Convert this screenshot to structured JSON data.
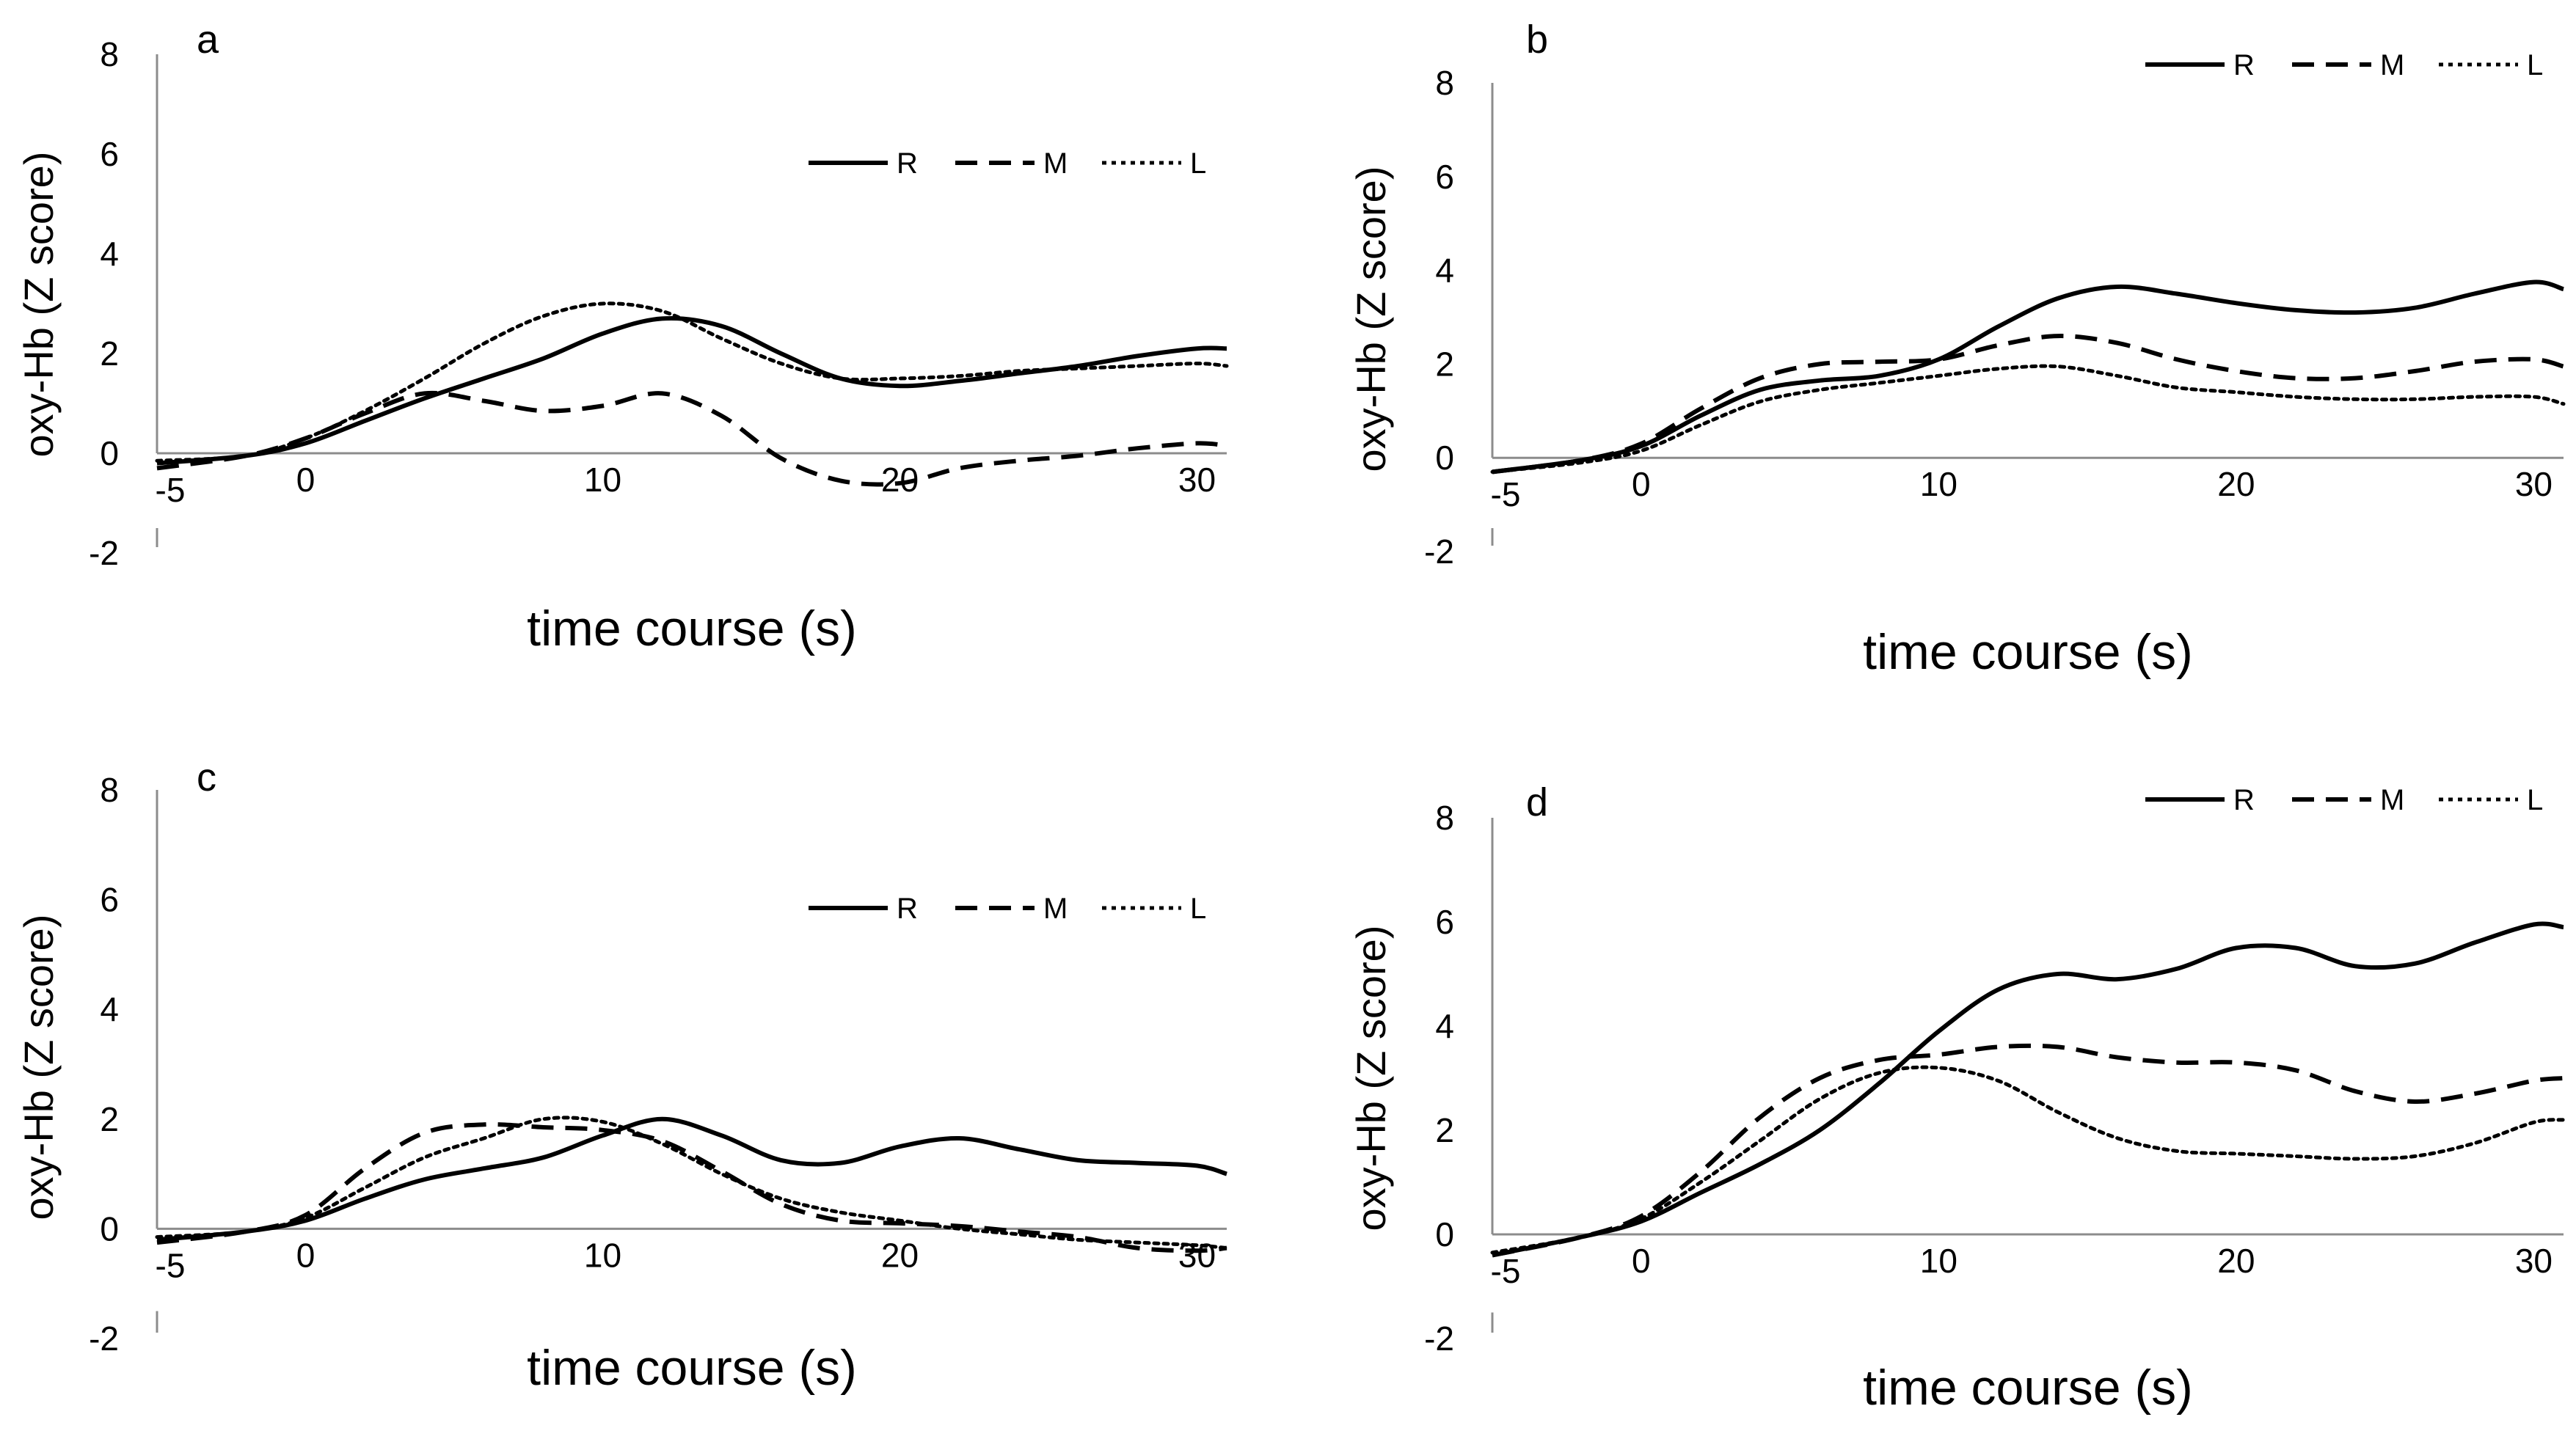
{
  "figure": {
    "background_color": "#ffffff",
    "ink_color": "#000000"
  },
  "chart_data": [
    {
      "type": "line",
      "panel_label": "a",
      "title": "",
      "xlabel": "time course (s)",
      "ylabel": "oxy-Hb (Z score)",
      "xlim": [
        -5,
        31
      ],
      "ylim": [
        -2,
        8
      ],
      "xticks": [
        -5,
        0,
        10,
        20,
        30
      ],
      "yticks": [
        -2,
        0,
        2,
        4,
        6,
        8
      ],
      "legend": "top-right",
      "series": [
        {
          "name": "R",
          "style": "solid",
          "x": [
            -5,
            -2,
            0,
            2,
            4,
            6,
            8,
            10,
            12,
            14,
            16,
            18,
            20,
            22,
            24,
            26,
            28,
            30,
            31
          ],
          "values": [
            -0.2,
            -0.05,
            0.2,
            0.65,
            1.1,
            1.5,
            1.9,
            2.4,
            2.7,
            2.55,
            2.0,
            1.5,
            1.35,
            1.45,
            1.6,
            1.75,
            1.95,
            2.1,
            2.1
          ]
        },
        {
          "name": "M",
          "style": "dashed",
          "x": [
            -5,
            -2,
            0,
            2,
            4,
            6,
            8,
            10,
            12,
            14,
            16,
            18,
            20,
            22,
            24,
            26,
            28,
            30,
            31
          ],
          "values": [
            -0.3,
            -0.05,
            0.3,
            0.8,
            1.2,
            1.05,
            0.85,
            0.95,
            1.2,
            0.75,
            -0.1,
            -0.55,
            -0.6,
            -0.3,
            -0.15,
            -0.05,
            0.1,
            0.2,
            0.15
          ]
        },
        {
          "name": "L",
          "style": "dotted",
          "x": [
            -5,
            -2,
            0,
            2,
            4,
            6,
            8,
            10,
            12,
            14,
            16,
            18,
            20,
            22,
            24,
            26,
            28,
            30,
            31
          ],
          "values": [
            -0.15,
            -0.05,
            0.3,
            0.85,
            1.5,
            2.2,
            2.75,
            3.0,
            2.85,
            2.3,
            1.8,
            1.5,
            1.5,
            1.55,
            1.65,
            1.7,
            1.75,
            1.8,
            1.75
          ]
        }
      ]
    },
    {
      "type": "line",
      "panel_label": "b",
      "title": "",
      "xlabel": "time course (s)",
      "ylabel": "oxy-Hb (Z score)",
      "xlim": [
        -5,
        31
      ],
      "ylim": [
        -2,
        8
      ],
      "xticks": [
        -5,
        0,
        10,
        20,
        30
      ],
      "yticks": [
        -2,
        0,
        2,
        4,
        6,
        8
      ],
      "legend": "top-right",
      "series": [
        {
          "name": "R",
          "style": "solid",
          "x": [
            -5,
            -2,
            0,
            2,
            4,
            6,
            8,
            10,
            12,
            14,
            16,
            18,
            20,
            22,
            24,
            26,
            28,
            30,
            31
          ],
          "values": [
            -0.3,
            -0.05,
            0.25,
            0.9,
            1.45,
            1.65,
            1.75,
            2.1,
            2.8,
            3.4,
            3.65,
            3.5,
            3.3,
            3.15,
            3.1,
            3.2,
            3.5,
            3.75,
            3.6
          ]
        },
        {
          "name": "M",
          "style": "dashed",
          "x": [
            -5,
            -2,
            0,
            2,
            4,
            6,
            8,
            10,
            12,
            14,
            16,
            18,
            20,
            22,
            24,
            26,
            28,
            30,
            31
          ],
          "values": [
            -0.3,
            -0.05,
            0.3,
            1.05,
            1.7,
            2.0,
            2.05,
            2.1,
            2.4,
            2.6,
            2.45,
            2.1,
            1.85,
            1.7,
            1.7,
            1.85,
            2.05,
            2.1,
            1.95
          ]
        },
        {
          "name": "L",
          "style": "dotted",
          "x": [
            -5,
            -2,
            0,
            2,
            4,
            6,
            8,
            10,
            12,
            14,
            16,
            18,
            20,
            22,
            24,
            26,
            28,
            30,
            31
          ],
          "values": [
            -0.3,
            -0.1,
            0.15,
            0.7,
            1.2,
            1.45,
            1.6,
            1.75,
            1.9,
            1.95,
            1.75,
            1.5,
            1.4,
            1.3,
            1.25,
            1.25,
            1.3,
            1.3,
            1.15
          ]
        }
      ]
    },
    {
      "type": "line",
      "panel_label": "c",
      "title": "",
      "xlabel": "time course (s)",
      "ylabel": "oxy-Hb (Z score)",
      "xlim": [
        -5,
        31
      ],
      "ylim": [
        -2,
        8
      ],
      "xticks": [
        -5,
        0,
        10,
        20,
        30
      ],
      "yticks": [
        -2,
        0,
        2,
        4,
        6,
        8
      ],
      "legend": "top-right",
      "series": [
        {
          "name": "R",
          "style": "solid",
          "x": [
            -5,
            -2,
            0,
            2,
            4,
            6,
            8,
            10,
            12,
            14,
            16,
            18,
            20,
            22,
            24,
            26,
            28,
            30,
            31
          ],
          "values": [
            -0.2,
            -0.05,
            0.15,
            0.55,
            0.9,
            1.1,
            1.3,
            1.7,
            2.0,
            1.7,
            1.25,
            1.2,
            1.5,
            1.65,
            1.45,
            1.25,
            1.2,
            1.15,
            1.0
          ]
        },
        {
          "name": "M",
          "style": "dashed",
          "x": [
            -5,
            -2,
            0,
            2,
            4,
            6,
            8,
            10,
            12,
            14,
            16,
            18,
            20,
            22,
            24,
            26,
            28,
            30,
            31
          ],
          "values": [
            -0.25,
            -0.05,
            0.25,
            1.1,
            1.75,
            1.9,
            1.85,
            1.8,
            1.6,
            1.05,
            0.45,
            0.15,
            0.1,
            0.05,
            -0.05,
            -0.15,
            -0.35,
            -0.4,
            -0.35
          ]
        },
        {
          "name": "L",
          "style": "dotted",
          "x": [
            -5,
            -2,
            0,
            2,
            4,
            6,
            8,
            10,
            12,
            14,
            16,
            18,
            20,
            22,
            24,
            26,
            28,
            30,
            31
          ],
          "values": [
            -0.15,
            -0.05,
            0.2,
            0.75,
            1.3,
            1.65,
            2.0,
            1.95,
            1.55,
            1.0,
            0.55,
            0.3,
            0.15,
            0.0,
            -0.1,
            -0.2,
            -0.25,
            -0.3,
            -0.35
          ]
        }
      ]
    },
    {
      "type": "line",
      "panel_label": "d",
      "title": "",
      "xlabel": "time course (s)",
      "ylabel": "oxy-Hb (Z score)",
      "xlim": [
        -5,
        31
      ],
      "ylim": [
        -2,
        8
      ],
      "xticks": [
        -5,
        0,
        10,
        20,
        30
      ],
      "yticks": [
        -2,
        0,
        2,
        4,
        6,
        8
      ],
      "legend": "top-right",
      "series": [
        {
          "name": "R",
          "style": "solid",
          "x": [
            -5,
            -2,
            0,
            2,
            4,
            6,
            8,
            10,
            12,
            14,
            16,
            18,
            20,
            22,
            24,
            26,
            28,
            30,
            31
          ],
          "values": [
            -0.4,
            -0.05,
            0.25,
            0.8,
            1.35,
            2.0,
            2.9,
            3.9,
            4.7,
            5.0,
            4.9,
            5.1,
            5.5,
            5.5,
            5.15,
            5.2,
            5.6,
            5.95,
            5.9
          ]
        },
        {
          "name": "M",
          "style": "dashed",
          "x": [
            -5,
            -2,
            0,
            2,
            4,
            6,
            8,
            10,
            12,
            14,
            16,
            18,
            20,
            22,
            24,
            26,
            28,
            30,
            31
          ],
          "values": [
            -0.4,
            -0.05,
            0.35,
            1.2,
            2.25,
            3.0,
            3.35,
            3.45,
            3.6,
            3.6,
            3.4,
            3.3,
            3.3,
            3.15,
            2.75,
            2.55,
            2.7,
            2.95,
            3.0
          ]
        },
        {
          "name": "L",
          "style": "dotted",
          "x": [
            -5,
            -2,
            0,
            2,
            4,
            6,
            8,
            10,
            12,
            14,
            16,
            18,
            20,
            22,
            24,
            26,
            28,
            30,
            31
          ],
          "values": [
            -0.35,
            -0.05,
            0.3,
            1.0,
            1.8,
            2.6,
            3.1,
            3.2,
            2.95,
            2.35,
            1.85,
            1.6,
            1.55,
            1.5,
            1.45,
            1.5,
            1.75,
            2.15,
            2.2
          ]
        }
      ]
    }
  ]
}
